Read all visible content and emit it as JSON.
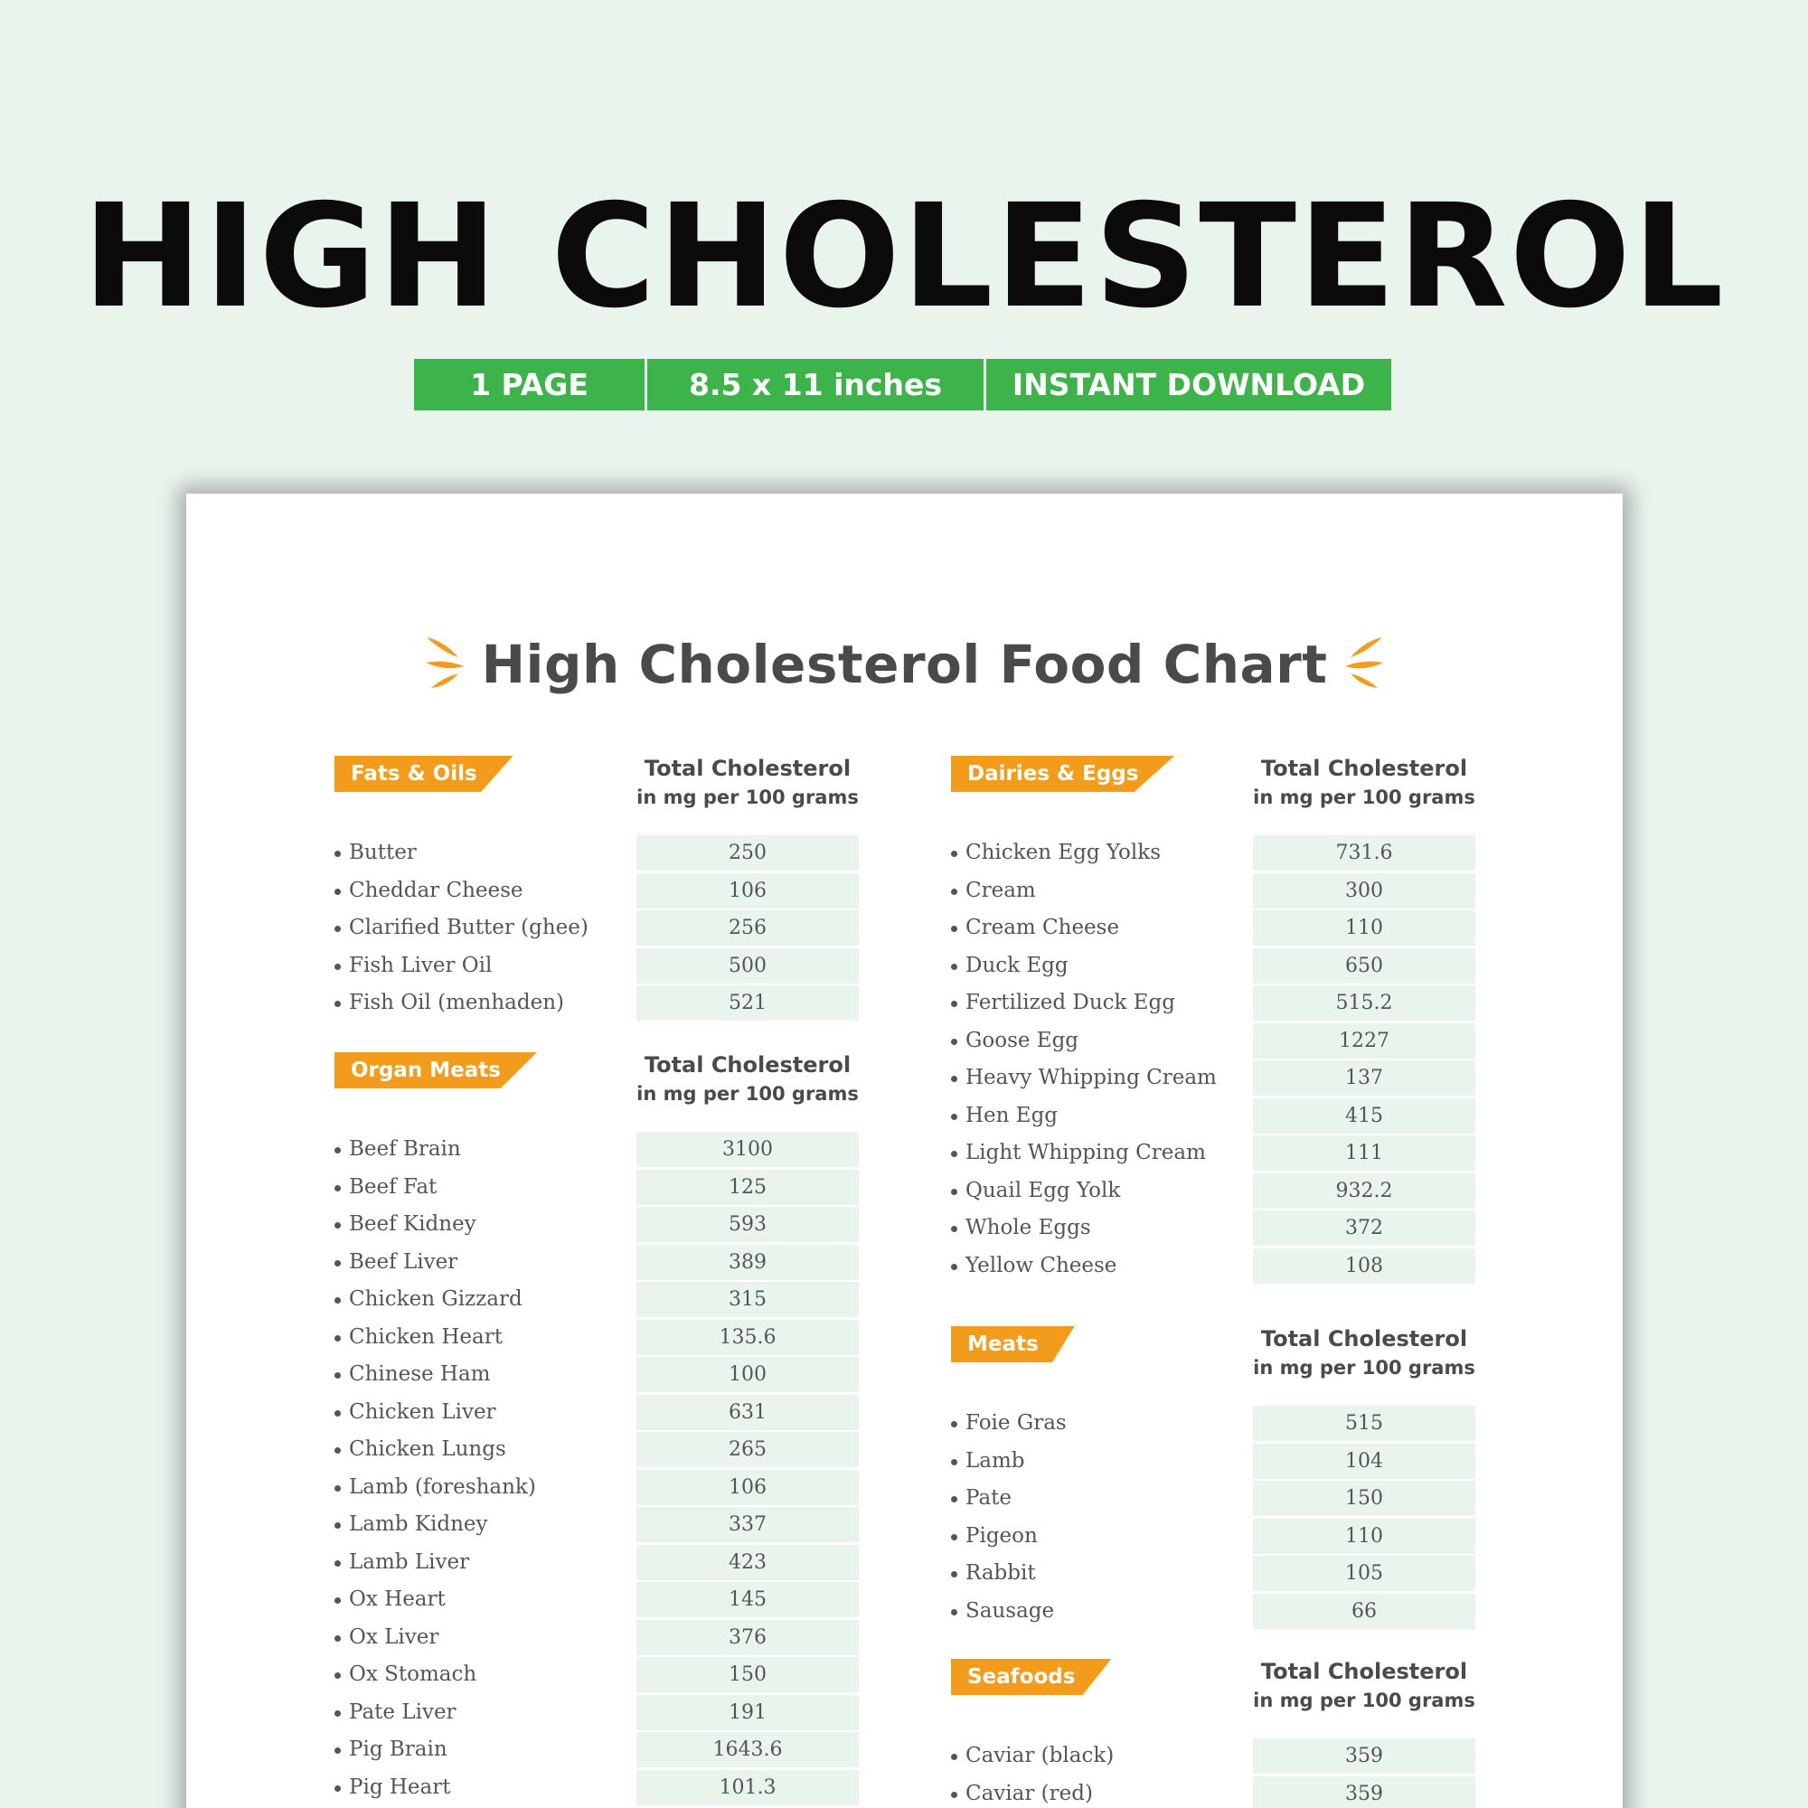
{
  "header": {
    "title": "HIGH CHOLESTEROL",
    "features": [
      "1 PAGE",
      "8.5 x 11 inches",
      "INSTANT DOWNLOAD"
    ]
  },
  "sheet": {
    "title": "High Cholesterol Food Chart",
    "column_header_line1": "Total Cholesterol",
    "column_header_line2": "in mg per 100 grams",
    "sections": {
      "fats_oils": {
        "name": "Fats & Oils",
        "items": [
          {
            "food": "Butter",
            "value": "250"
          },
          {
            "food": "Cheddar Cheese",
            "value": "106"
          },
          {
            "food": "Clarified Butter (ghee)",
            "value": "256"
          },
          {
            "food": "Fish Liver Oil",
            "value": "500"
          },
          {
            "food": "Fish Oil (menhaden)",
            "value": "521"
          }
        ]
      },
      "organ_meats": {
        "name": "Organ Meats",
        "items": [
          {
            "food": "Beef Brain",
            "value": "3100"
          },
          {
            "food": "Beef Fat",
            "value": "125"
          },
          {
            "food": "Beef Kidney",
            "value": "593"
          },
          {
            "food": "Beef Liver",
            "value": "389"
          },
          {
            "food": "Chicken Gizzard",
            "value": "315"
          },
          {
            "food": "Chicken Heart",
            "value": "135.6"
          },
          {
            "food": "Chinese Ham",
            "value": "100"
          },
          {
            "food": "Chicken Liver",
            "value": "631"
          },
          {
            "food": "Chicken Lungs",
            "value": "265"
          },
          {
            "food": "Lamb (foreshank)",
            "value": "106"
          },
          {
            "food": "Lamb Kidney",
            "value": "337"
          },
          {
            "food": "Lamb Liver",
            "value": "423"
          },
          {
            "food": "Ox Heart",
            "value": "145"
          },
          {
            "food": "Ox Liver",
            "value": "376"
          },
          {
            "food": "Ox Stomach",
            "value": "150"
          },
          {
            "food": "Pate Liver",
            "value": "191"
          },
          {
            "food": "Pig Brain",
            "value": "1643.6"
          },
          {
            "food": "Pig Heart",
            "value": "101.3"
          }
        ]
      },
      "dairies_eggs": {
        "name": "Dairies & Eggs",
        "items": [
          {
            "food": "Chicken Egg Yolks",
            "value": "731.6"
          },
          {
            "food": "Cream",
            "value": "300"
          },
          {
            "food": "Cream Cheese",
            "value": "110"
          },
          {
            "food": "Duck Egg",
            "value": "650"
          },
          {
            "food": "Fertilized Duck Egg",
            "value": "515.2"
          },
          {
            "food": "Goose Egg",
            "value": "1227"
          },
          {
            "food": "Heavy Whipping Cream",
            "value": "137"
          },
          {
            "food": "Hen Egg",
            "value": "415"
          },
          {
            "food": "Light Whipping Cream",
            "value": "111"
          },
          {
            "food": "Quail Egg Yolk",
            "value": "932.2"
          },
          {
            "food": "Whole Eggs",
            "value": "372"
          },
          {
            "food": "Yellow Cheese",
            "value": "108"
          }
        ]
      },
      "meats": {
        "name": "Meats",
        "items": [
          {
            "food": "Foie Gras",
            "value": "515"
          },
          {
            "food": "Lamb",
            "value": "104"
          },
          {
            "food": "Pate",
            "value": "150"
          },
          {
            "food": "Pigeon",
            "value": "110"
          },
          {
            "food": "Rabbit",
            "value": "105"
          },
          {
            "food": "Sausage",
            "value": "66"
          }
        ]
      },
      "seafoods": {
        "name": "Seafoods",
        "items": [
          {
            "food": "Caviar (black)",
            "value": "359"
          },
          {
            "food": "Caviar (red)",
            "value": "359"
          }
        ]
      }
    }
  },
  "colors": {
    "background": "#e9f4ec",
    "feature_bar": "#3db44a",
    "section_tag": "#f39c1c",
    "title_text": "#4a4a4a",
    "value_cell": "#e9f4ec"
  },
  "icons": [
    "sparkle-left-icon",
    "sparkle-right-icon",
    "bullet-icon"
  ]
}
